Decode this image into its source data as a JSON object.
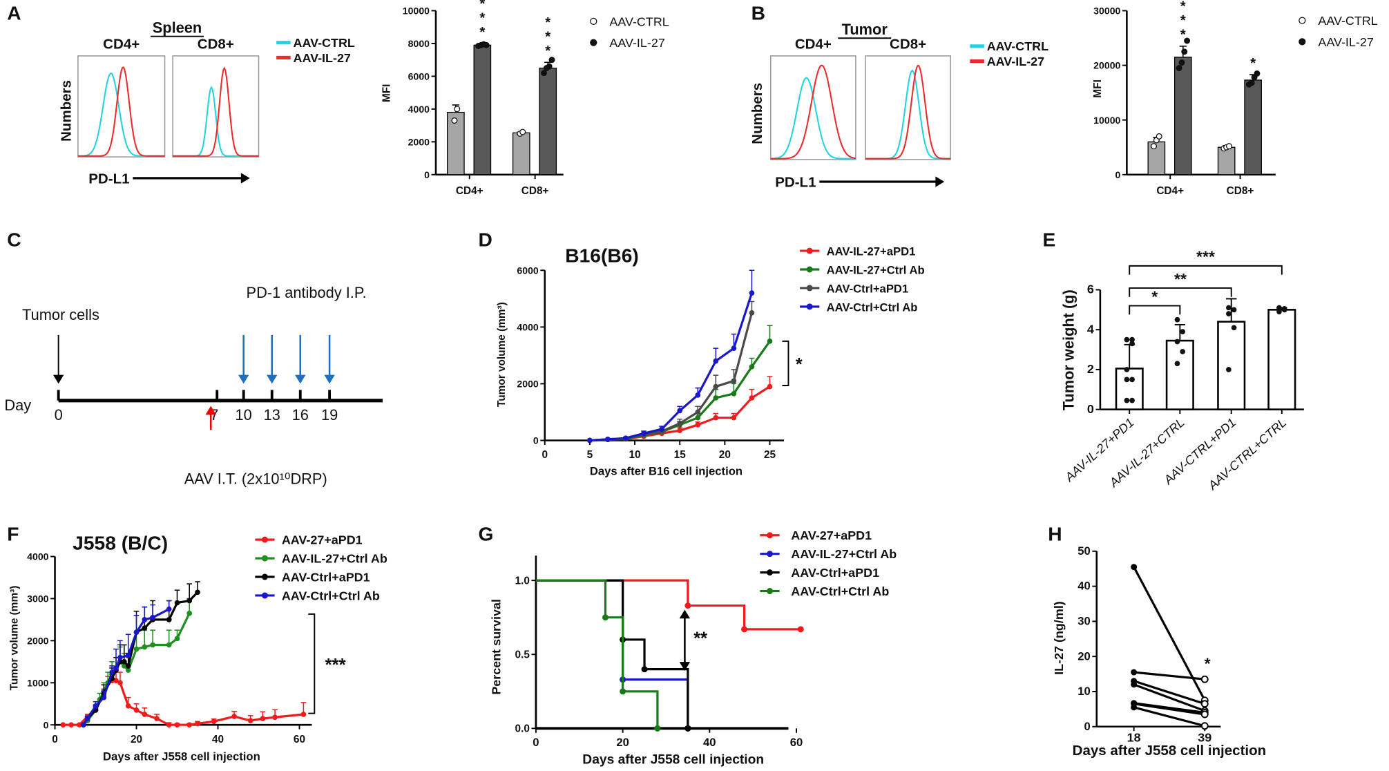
{
  "panel_labels": [
    "A",
    "B",
    "C",
    "D",
    "E",
    "F",
    "G",
    "H"
  ],
  "colors": {
    "ctrl_hist": "#22d3e0",
    "il27_hist": "#ee2a2a",
    "bar_ctrl": "#a6a6a6",
    "bar_il27": "#595959",
    "red": "#ee1c1c",
    "green": "#1a7a1a",
    "gray": "#4a4a4a",
    "blue": "#1818c8",
    "black": "#000000",
    "arrow_blue": "#1f6fbf"
  },
  "chart_data": [
    {
      "type": "histogram",
      "title": "Spleen",
      "subpanels": [
        "CD4+",
        "CD8+"
      ],
      "xlabel": "PD-L1",
      "ylabel": "Numbers",
      "legend": [
        {
          "name": "AAV-CTRL",
          "color": "#22d3e0"
        },
        {
          "name": "AAV-IL-27",
          "color": "#ee2a2a"
        }
      ]
    },
    {
      "type": "bar",
      "categories": [
        "CD4+",
        "CD8+"
      ],
      "ylabel": "MFI",
      "ylim": [
        0,
        10000
      ],
      "yticks": [
        "0",
        "2000",
        "4000",
        "6000",
        "8000",
        "10000"
      ],
      "series": [
        {
          "name": "AAV-CTRL",
          "values": [
            3800,
            2550
          ],
          "sd": [
            450,
            60
          ],
          "points": [
            [
              3300,
              4000
            ],
            [
              2500,
              2600
            ]
          ]
        },
        {
          "name": "AAV-IL-27",
          "values": [
            7900,
            6500
          ],
          "sd": [
            80,
            350
          ],
          "points": [
            [
              7850,
              7900,
              7950,
              7900
            ],
            [
              6200,
              6500,
              6600,
              7000
            ]
          ]
        }
      ],
      "significance": [
        "***",
        "***"
      ],
      "legend": [
        "AAV-CTRL",
        "AAV-IL-27"
      ]
    },
    {
      "type": "histogram",
      "title": "Tumor",
      "subpanels": [
        "CD4+",
        "CD8+"
      ],
      "xlabel": "PD-L1",
      "ylabel": "Numbers",
      "legend": [
        {
          "name": "AAV-CTRL",
          "color": "#22d3e0"
        },
        {
          "name": "AAV-IL-27",
          "color": "#ee2a2a"
        }
      ]
    },
    {
      "type": "bar",
      "categories": [
        "CD4+",
        "CD8+"
      ],
      "ylabel": "MFI",
      "ylim": [
        0,
        30000
      ],
      "yticks": [
        "0",
        "10000",
        "20000",
        "30000"
      ],
      "series": [
        {
          "name": "AAV-CTRL",
          "values": [
            6000,
            5000
          ],
          "sd": [
            800,
            300
          ],
          "points": [
            [
              5200,
              6300,
              7000
            ],
            [
              4800,
              5000,
              5200
            ]
          ]
        },
        {
          "name": "AAV-IL-27",
          "values": [
            21500,
            17300
          ],
          "sd": [
            2000,
            1000
          ],
          "points": [
            [
              19500,
              20500,
              22500,
              24500
            ],
            [
              16500,
              16800,
              17800,
              18500
            ]
          ]
        }
      ],
      "significance": [
        "***",
        "*"
      ],
      "legend": [
        "AAV-CTRL",
        "AAV-IL-27"
      ]
    },
    {
      "type": "timeline",
      "axis_label": "Day",
      "days": [
        "0",
        "7",
        "10",
        "13",
        "16",
        "19"
      ],
      "tumor_label": "Tumor cells",
      "pd1_label": "PD-1  antibody I.P.",
      "aav_label": "AAV I.T. (2x10¹⁰DRP)"
    },
    {
      "type": "line",
      "title": "B16(B6)",
      "xlabel": "Days after B16 cell injection",
      "ylabel": "Tumor volume (mm³)",
      "xlim": [
        0,
        27
      ],
      "ylim": [
        0,
        6000
      ],
      "xticks": [
        "0",
        "5",
        "10",
        "15",
        "20",
        "25"
      ],
      "yticks": [
        "0",
        "2000",
        "4000",
        "6000"
      ],
      "series": [
        {
          "name": "AAV-IL-27+aPD1",
          "color": "#ee1c1c",
          "x": [
            5,
            7,
            9,
            11,
            13,
            15,
            17,
            19,
            21,
            23,
            25
          ],
          "y": [
            0,
            30,
            50,
            150,
            250,
            350,
            550,
            800,
            800,
            1500,
            1900
          ],
          "err": [
            0,
            20,
            30,
            50,
            60,
            100,
            100,
            150,
            150,
            300,
            350
          ]
        },
        {
          "name": "AAV-IL-27+Ctrl Ab",
          "color": "#1a7a1a",
          "x": [
            5,
            7,
            9,
            11,
            13,
            15,
            17,
            19,
            21,
            23,
            25
          ],
          "y": [
            0,
            30,
            60,
            180,
            300,
            550,
            800,
            1500,
            1650,
            2600,
            3500
          ],
          "err": [
            0,
            20,
            30,
            60,
            80,
            120,
            150,
            300,
            350,
            300,
            550
          ]
        },
        {
          "name": "AAV-Ctrl+aPD1",
          "color": "#4a4a4a",
          "x": [
            5,
            7,
            9,
            11,
            13,
            15,
            17,
            19,
            21,
            23
          ],
          "y": [
            0,
            40,
            70,
            200,
            320,
            600,
            1000,
            1900,
            2100,
            4500
          ],
          "err": [
            0,
            20,
            40,
            60,
            80,
            150,
            200,
            400,
            400,
            400
          ]
        },
        {
          "name": "AAV-Ctrl+Ctrl Ab",
          "color": "#1818c8",
          "x": [
            5,
            7,
            9,
            11,
            13,
            15,
            17,
            19,
            21,
            23
          ],
          "y": [
            0,
            40,
            80,
            250,
            400,
            1050,
            1600,
            2800,
            3250,
            5200
          ],
          "err": [
            0,
            20,
            40,
            80,
            100,
            150,
            250,
            450,
            500,
            800
          ]
        }
      ],
      "significance": "*"
    },
    {
      "type": "bar",
      "ylabel": "Tumor weight (g)",
      "ylim": [
        0,
        6
      ],
      "yticks": [
        "0",
        "2",
        "4",
        "6"
      ],
      "categories": [
        "AAV-IL-27+PD1",
        "AAV-IL-27+CTRL",
        "AAV-CTRL+PD1",
        "AAV-CTRL+CTRL"
      ],
      "values": [
        2.05,
        3.45,
        4.4,
        5.0
      ],
      "sd": [
        1.2,
        0.8,
        1.15,
        0.1
      ],
      "points": [
        [
          0.45,
          0.45,
          1.5,
          1.5,
          2.0,
          3.3,
          3.5,
          3.5
        ],
        [
          2.3,
          2.9,
          3.4,
          3.9,
          4.5
        ],
        [
          2.0,
          4.1,
          4.8,
          5.0,
          5.1
        ],
        [
          4.9,
          5.0,
          5.0,
          5.05,
          5.1
        ]
      ],
      "comparisons": [
        {
          "groups": [
            0,
            1
          ],
          "label": "*"
        },
        {
          "groups": [
            0,
            2
          ],
          "label": "**"
        },
        {
          "groups": [
            0,
            3
          ],
          "label": "***"
        }
      ]
    },
    {
      "type": "line",
      "title": "J558 (B/C)",
      "xlabel": "Days after J558 cell injection",
      "ylabel": "Tumor volume (mm³)",
      "xlim": [
        0,
        65
      ],
      "ylim": [
        0,
        4000
      ],
      "xticks": [
        "0",
        "20",
        "40",
        "60"
      ],
      "yticks": [
        "0",
        "1000",
        "2000",
        "3000",
        "4000"
      ],
      "series": [
        {
          "name": "AAV-27+aPD1",
          "color": "#ee1c1c",
          "x": [
            2,
            4,
            6,
            8,
            10,
            12,
            13,
            14,
            15,
            16,
            18,
            20,
            22,
            25,
            28,
            30,
            33,
            35,
            39,
            44,
            48,
            51,
            54,
            61
          ],
          "y": [
            0,
            0,
            0,
            200,
            400,
            700,
            1000,
            1050,
            1050,
            1000,
            450,
            350,
            250,
            150,
            0,
            0,
            0,
            30,
            80,
            200,
            100,
            150,
            180,
            250
          ],
          "err": [
            0,
            0,
            0,
            50,
            80,
            150,
            150,
            150,
            200,
            250,
            200,
            150,
            150,
            100,
            50,
            30,
            30,
            50,
            60,
            120,
            120,
            160,
            180,
            280
          ]
        },
        {
          "name": "AAV-IL-27+Ctrl Ab",
          "color": "#1f8f1f",
          "x": [
            7,
            8,
            10,
            11,
            12,
            13,
            14,
            16,
            17,
            18,
            20,
            22,
            24,
            28,
            30,
            33
          ],
          "y": [
            0,
            100,
            350,
            600,
            800,
            1000,
            1200,
            1500,
            1400,
            1300,
            1800,
            1850,
            1900,
            1900,
            2050,
            2650
          ],
          "err": [
            0,
            50,
            80,
            150,
            200,
            250,
            300,
            350,
            300,
            300,
            400,
            400,
            350,
            350,
            200,
            350
          ]
        },
        {
          "name": "AAV-Ctrl+aPD1",
          "color": "#000000",
          "x": [
            7,
            8,
            10,
            12,
            14,
            15,
            16,
            17,
            18,
            20,
            22,
            24,
            28,
            30,
            33,
            35
          ],
          "y": [
            0,
            150,
            350,
            750,
            1100,
            1300,
            1500,
            1500,
            1400,
            2200,
            2300,
            2500,
            2500,
            2900,
            2950,
            3150
          ],
          "err": [
            0,
            50,
            100,
            200,
            250,
            300,
            400,
            400,
            300,
            500,
            500,
            450,
            450,
            300,
            400,
            250
          ]
        },
        {
          "name": "AAV-Ctrl+Ctrl Ab",
          "color": "#1818c8",
          "x": [
            7,
            8,
            10,
            12,
            14,
            15,
            16,
            18,
            20,
            22,
            24,
            28
          ],
          "y": [
            0,
            150,
            450,
            650,
            1250,
            1350,
            1600,
            1650,
            2200,
            2500,
            2550,
            2750
          ],
          "err": [
            0,
            50,
            100,
            150,
            150,
            450,
            400,
            500,
            400,
            300,
            300,
            200
          ]
        }
      ],
      "significance": "***"
    },
    {
      "type": "survival",
      "xlabel": "Days after J558 cell injection",
      "ylabel": "Percent survival",
      "xlim": [
        0,
        65
      ],
      "ylim": [
        0,
        1
      ],
      "xticks": [
        "0",
        "20",
        "40",
        "60"
      ],
      "yticks": [
        "0.0",
        "0.5",
        "1.0"
      ],
      "series": [
        {
          "name": "AAV-27+aPD1",
          "color": "#ee1c1c",
          "steps": [
            [
              0,
              1.0
            ],
            [
              35,
              0.83
            ],
            [
              48,
              0.67
            ]
          ],
          "end": 61
        },
        {
          "name": "AAV-IL-27+Ctrl Ab",
          "color": "#1818c8",
          "steps": [
            [
              0,
              1.0
            ],
            [
              20,
              0.33
            ],
            [
              35,
              0
            ]
          ],
          "end": 35
        },
        {
          "name": "AAV-Ctrl+aPD1",
          "color": "#000000",
          "steps": [
            [
              0,
              1.0
            ],
            [
              20,
              0.6
            ],
            [
              25,
              0.4
            ],
            [
              35,
              0
            ]
          ],
          "end": 35
        },
        {
          "name": "AAV-Ctrl+Ctrl Ab",
          "color": "#1a7a1a",
          "steps": [
            [
              0,
              1.0
            ],
            [
              16,
              0.75
            ],
            [
              20,
              0.25
            ],
            [
              28,
              0
            ]
          ],
          "end": 28
        }
      ],
      "significance": "**"
    },
    {
      "type": "paired",
      "xlabel": "Days after J558 cell injection",
      "ylabel": "IL-27 (ng/ml)",
      "ylim": [
        0,
        50
      ],
      "xticks": [
        "18",
        "39"
      ],
      "yticks": [
        "0",
        "10",
        "20",
        "30",
        "40",
        "50"
      ],
      "pairs": [
        [
          45.5,
          7.5
        ],
        [
          15.5,
          13.5
        ],
        [
          13,
          6.5
        ],
        [
          12,
          4.5
        ],
        [
          6.7,
          4
        ],
        [
          6.5,
          3.5
        ],
        [
          5.5,
          0.2
        ]
      ],
      "significance": "*"
    }
  ]
}
